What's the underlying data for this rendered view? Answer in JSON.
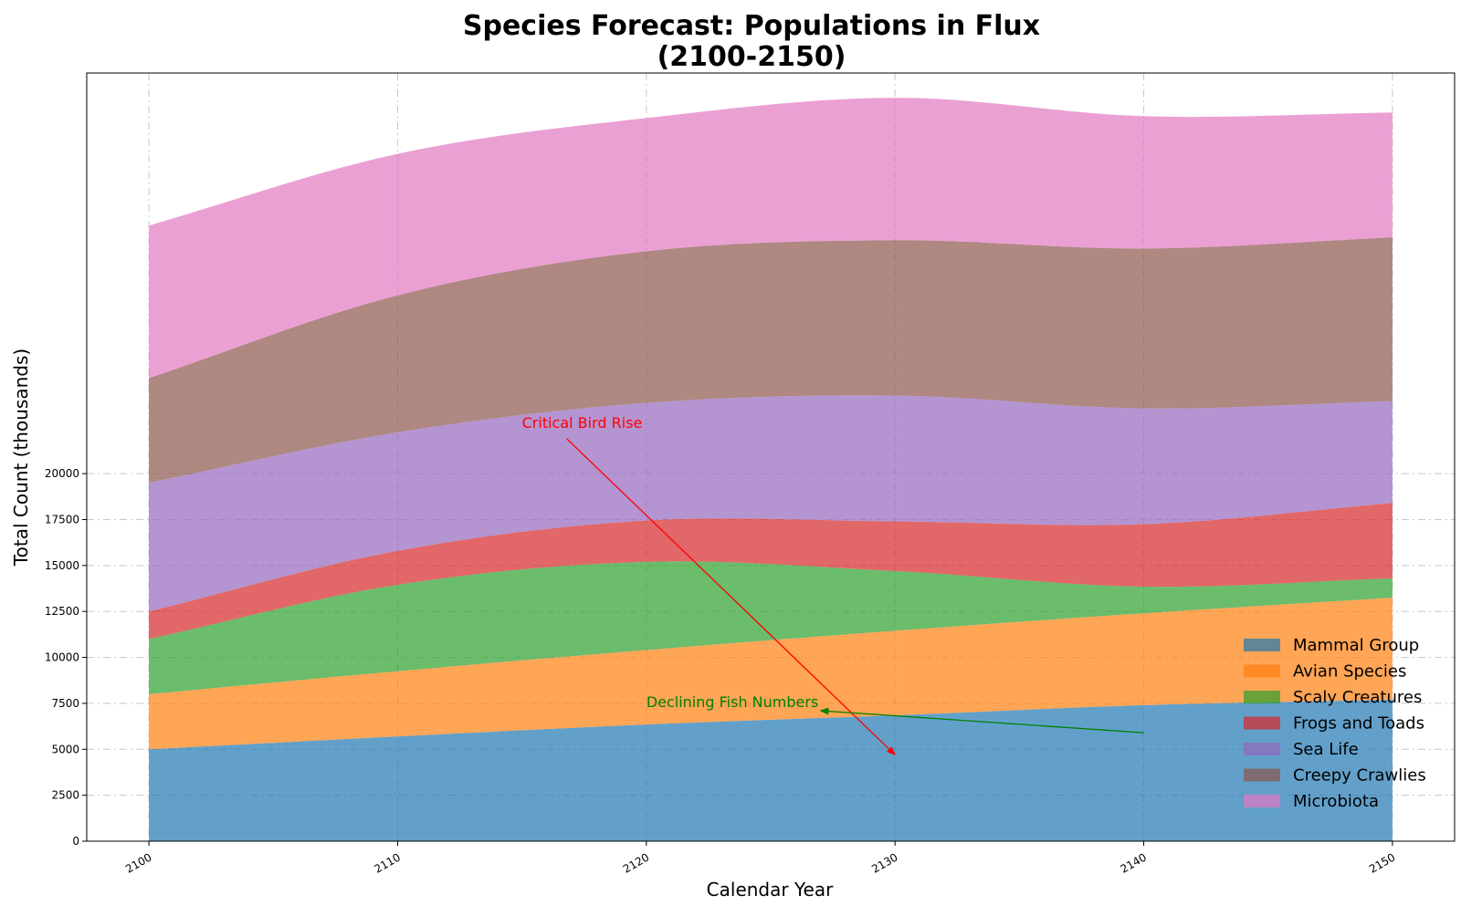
{
  "chart_data": {
    "type": "area",
    "stacked": true,
    "title_line1": "Species Forecast: Populations in Flux",
    "title_line2": "(2100-2150)",
    "xlabel": "Calendar Year",
    "ylabel": "Total Count (thousands)",
    "x": [
      2100,
      2110,
      2120,
      2130,
      2140,
      2150
    ],
    "x_ticks": [
      "2100",
      "2110",
      "2120",
      "2130",
      "2140",
      "2150"
    ],
    "xlim": [
      2097.5,
      2152.5
    ],
    "y_ticks": [
      "0",
      "2500",
      "5000",
      "7500",
      "10000",
      "12500",
      "15000",
      "17500",
      "20000"
    ],
    "ylim": [
      0,
      41800
    ],
    "grid": true,
    "legend_position": "lower-right",
    "series": [
      {
        "name": "Mammal Group",
        "color": "#1f77b4",
        "values": [
          5000,
          5700,
          6350,
          6850,
          7400,
          7700
        ]
      },
      {
        "name": "Avian Species",
        "color": "#ff7f0e",
        "values": [
          3000,
          3550,
          4050,
          4600,
          5000,
          5550
        ]
      },
      {
        "name": "Scaly Creatures",
        "color": "#2ca02c",
        "values": [
          3000,
          4700,
          4800,
          3250,
          1450,
          1050
        ]
      },
      {
        "name": "Frogs and Toads",
        "color": "#d62728",
        "values": [
          1500,
          1850,
          2250,
          2700,
          3400,
          4100
        ]
      },
      {
        "name": "Sea Life",
        "color": "#9467bd",
        "values": [
          7000,
          6450,
          6400,
          6850,
          6300,
          5550
        ]
      },
      {
        "name": "Creepy Crawlies",
        "color": "#8c564b",
        "values": [
          5700,
          7450,
          8250,
          8450,
          8700,
          8900
        ]
      },
      {
        "name": "Microbiota",
        "color": "#e377c2",
        "values": [
          8300,
          7700,
          7250,
          7750,
          7200,
          6800
        ]
      }
    ],
    "annotations": [
      {
        "text": "Critical Bird Rise",
        "color": "#ff0000",
        "xy": [
          2130,
          4700
        ],
        "xytext": [
          2115,
          22500
        ],
        "text_anchor": "start"
      },
      {
        "text": "Declining Fish Numbers",
        "color": "#008000",
        "xy": [
          2127,
          7100
        ],
        "xytext": [
          2120,
          7300
        ],
        "arrow_from": [
          2140,
          5900
        ],
        "text_anchor": "start"
      }
    ]
  }
}
